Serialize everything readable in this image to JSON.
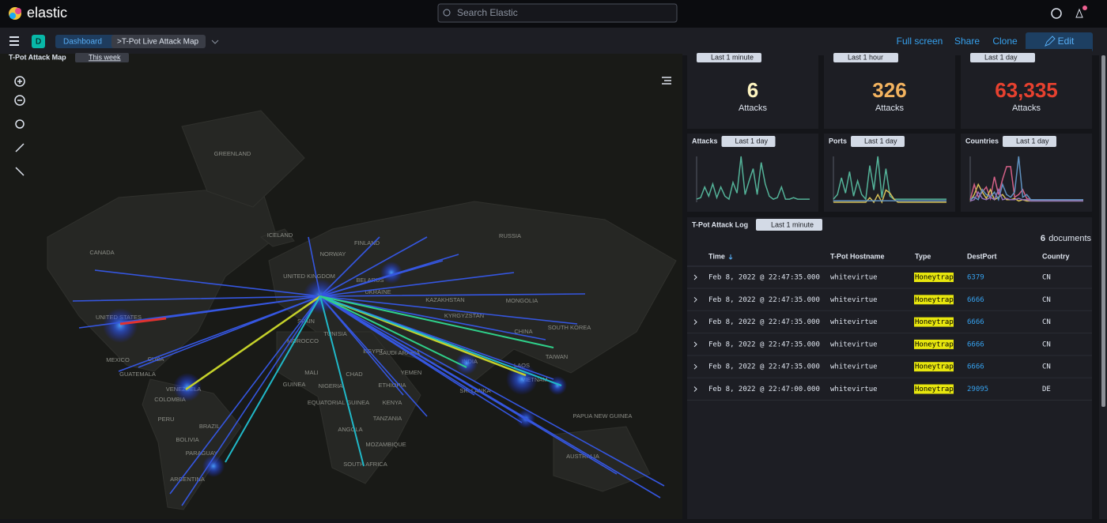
{
  "header": {
    "brand": "elastic",
    "search_placeholder": "Search Elastic"
  },
  "nav": {
    "space": "D",
    "breadcrumbs": [
      "Dashboard",
      ">T-Pot Live Attack Map"
    ],
    "actions": [
      "Full screen",
      "Share",
      "Clone",
      "Edit"
    ]
  },
  "map": {
    "title": "T-Pot Attack Map",
    "time_range": "This week",
    "labels": [
      "GREENLAND",
      "ICELAND",
      "CANADA",
      "FINLAND",
      "RUSSIA",
      "NORWAY",
      "UNITED KINGDOM",
      "BELARUS",
      "UKRAINE",
      "KAZAKHSTAN",
      "MONGOLIA",
      "UNITED STATES",
      "SPAIN",
      "KYRGYZSTAN",
      "SOUTH KOREA",
      "MOROCCO",
      "TUNISIA",
      "CHINA",
      "EGYPT",
      "SAUDI ARABIA",
      "TAIWAN",
      "MEXICO",
      "CUBA",
      "GUATEMALA",
      "MALI",
      "CHAD",
      "INDIA",
      "LAOS",
      "YEMEN",
      "VIETNAM",
      "NIGERIA",
      "ETHIOPIA",
      "GUINEA",
      "VENEZUELA",
      "COLOMBIA",
      "EQUATORIAL GUINEA",
      "KENYA",
      "SRI LANKA",
      "PERU",
      "TANZANIA",
      "PAPUA NEW GUINEA",
      "BRAZIL",
      "ANGOLA",
      "BOLIVIA",
      "MOZAMBIQUE",
      "PARAGUAY",
      "AUSTRALIA",
      "SOUTH AFRICA",
      "ARGENTINA"
    ]
  },
  "metrics": [
    {
      "time_range": "Last 1 minute",
      "value": 6,
      "caption": "Attacks",
      "color": "#fdf4c0"
    },
    {
      "time_range": "Last 1 hour",
      "value": 326,
      "caption": "Attacks",
      "color": "#f3b35f"
    },
    {
      "time_range": "Last 1 day",
      "value": 63335,
      "value_label": "63,335",
      "caption": "Attacks",
      "color": "#e7412f"
    }
  ],
  "sparklines": [
    {
      "title": "Attacks",
      "time_range": "Last 1 day",
      "series": [
        {
          "color": "#54b399",
          "values": [
            2,
            3,
            10,
            4,
            12,
            3,
            10,
            4,
            2,
            13,
            6,
            30,
            5,
            14,
            22,
            5,
            26,
            12,
            4,
            2,
            3,
            10,
            2,
            2,
            3,
            2,
            2,
            2,
            2
          ]
        }
      ]
    },
    {
      "title": "Ports",
      "time_range": "Last 1 day",
      "series": [
        {
          "color": "#54b399",
          "values": [
            2,
            5,
            16,
            6,
            20,
            4,
            14,
            5,
            2,
            24,
            8,
            30,
            3,
            22,
            4,
            2,
            2,
            2,
            2,
            2,
            2,
            2,
            2,
            2,
            2,
            2,
            2,
            2,
            2
          ]
        },
        {
          "color": "#d6bf57",
          "values": [
            0,
            0,
            0,
            0,
            0,
            0,
            0,
            0,
            0,
            3,
            0,
            5,
            0,
            8,
            6,
            2,
            0,
            0,
            0,
            0,
            0,
            0,
            0,
            0,
            0,
            0,
            0,
            0,
            0
          ]
        },
        {
          "color": "#6092c0",
          "values": [
            1,
            1,
            1,
            1,
            1,
            1,
            1,
            1,
            1,
            1,
            1,
            1,
            1,
            1,
            1,
            1,
            1,
            1,
            1,
            1,
            1,
            1,
            1,
            1,
            1,
            1,
            1,
            1,
            1
          ]
        }
      ]
    },
    {
      "title": "Countries",
      "time_range": "Last 1 day",
      "series": [
        {
          "color": "#d36086",
          "values": [
            2,
            14,
            4,
            8,
            12,
            3,
            20,
            6,
            18,
            28,
            28,
            4,
            6,
            10,
            3,
            2,
            2,
            2,
            2,
            2,
            2,
            2,
            2,
            2,
            2,
            2,
            2,
            2,
            2
          ]
        },
        {
          "color": "#d6bf57",
          "values": [
            1,
            6,
            14,
            8,
            3,
            10,
            2,
            4,
            6,
            2,
            2,
            3,
            1,
            2,
            1,
            1,
            1,
            1,
            1,
            1,
            1,
            1,
            1,
            1,
            1,
            1,
            1,
            1,
            1
          ]
        },
        {
          "color": "#6092c0",
          "values": [
            2,
            4,
            2,
            10,
            6,
            4,
            8,
            2,
            14,
            6,
            4,
            8,
            36,
            4,
            6,
            2,
            2,
            2,
            2,
            2,
            2,
            2,
            2,
            2,
            2,
            2,
            2,
            2,
            2
          ]
        },
        {
          "color": "#9170b8",
          "values": [
            1,
            2,
            8,
            3,
            2,
            4,
            2,
            10,
            2,
            3,
            2,
            2,
            3,
            2,
            2,
            1,
            1,
            1,
            1,
            1,
            1,
            1,
            1,
            1,
            1,
            1,
            1,
            1,
            1
          ]
        }
      ]
    }
  ],
  "log": {
    "title": "T-Pot Attack Log",
    "time_range": "Last 1 minute",
    "count": 6,
    "count_label": "documents",
    "columns": [
      "Time",
      "T-Pot Hostname",
      "Type",
      "DestPort",
      "Country"
    ],
    "rows": [
      [
        "Feb 8, 2022 @ 22:47:35.000",
        "whitevirtue",
        "Honeytrap",
        6379,
        "CN"
      ],
      [
        "Feb 8, 2022 @ 22:47:35.000",
        "whitevirtue",
        "Honeytrap",
        6666,
        "CN"
      ],
      [
        "Feb 8, 2022 @ 22:47:35.000",
        "whitevirtue",
        "Honeytrap",
        6666,
        "CN"
      ],
      [
        "Feb 8, 2022 @ 22:47:35.000",
        "whitevirtue",
        "Honeytrap",
        6666,
        "CN"
      ],
      [
        "Feb 8, 2022 @ 22:47:35.000",
        "whitevirtue",
        "Honeytrap",
        6666,
        "CN"
      ],
      [
        "Feb 8, 2022 @ 22:47:00.000",
        "whitevirtue",
        "Honeytrap",
        29095,
        "DE"
      ]
    ]
  }
}
